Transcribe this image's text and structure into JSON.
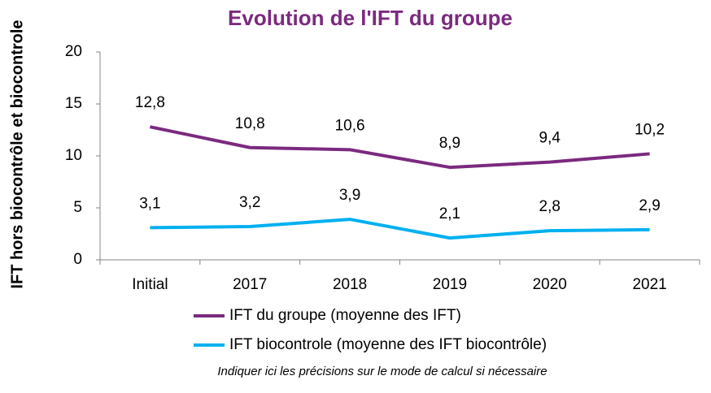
{
  "chart_data": {
    "type": "line",
    "title": "Evolution de l'IFT du groupe",
    "ylabel": "IFT  hors biocontrôle et biocontrole",
    "categories": [
      "Initial",
      "2017",
      "2018",
      "2019",
      "2020",
      "2021"
    ],
    "series": [
      {
        "name": "IFT du groupe (moyenne des IFT)",
        "color": "#7b2a7f",
        "values": [
          12.8,
          10.8,
          10.6,
          8.9,
          9.4,
          10.2
        ],
        "value_labels": [
          "12,8",
          "10,8",
          "10,6",
          "8,9",
          "9,4",
          "10,2"
        ]
      },
      {
        "name": "IFT biocontrole (moyenne des IFT biocontrôle)",
        "color": "#00b0f0",
        "values": [
          3.1,
          3.2,
          3.9,
          2.1,
          2.8,
          2.9
        ],
        "value_labels": [
          "3,1",
          "3,2",
          "3,9",
          "2,1",
          "2,8",
          "2,9"
        ]
      }
    ],
    "ylim": [
      0,
      20
    ],
    "yticks": [
      0,
      5,
      10,
      15,
      20
    ],
    "grid": false,
    "legend": "bottom",
    "annotation": "Indiquer ici les précisions sur le mode de calcul si nécessaire"
  }
}
